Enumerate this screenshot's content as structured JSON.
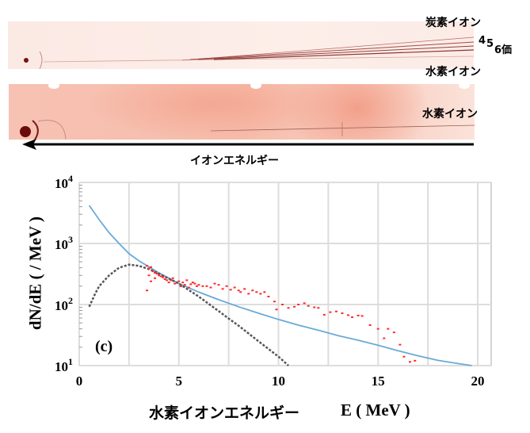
{
  "images": {
    "label_carbon": "炭素イオン",
    "charge_states": [
      "4",
      "5",
      "6価"
    ],
    "label_hydrogen_top": "水素イオン",
    "label_hydrogen_bottom": "水素イオン",
    "arrow_label": "イオンエネルギー"
  },
  "chart_data": {
    "type": "line",
    "panel_label": "(c)",
    "xlabel_jp": "水素イオンエネルギー",
    "xlabel": "E ( MeV )",
    "ylabel": "dN/dE ( / MeV )",
    "xlim": [
      0,
      20
    ],
    "ylim": [
      10,
      10000
    ],
    "yscale": "log",
    "grid": true,
    "x_ticks": [
      "0",
      "5",
      "10",
      "15",
      "20"
    ],
    "y_ticks": [
      {
        "base": "10",
        "exp": "1"
      },
      {
        "base": "10",
        "exp": "2"
      },
      {
        "base": "10",
        "exp": "3"
      },
      {
        "base": "10",
        "exp": "4"
      }
    ],
    "colors": {
      "fit": "#6aaad8",
      "model": "#555555",
      "measured": "#ff2a2a"
    },
    "series": [
      {
        "style": "solid",
        "color": "#6aaad8",
        "x": [
          0.5,
          1,
          1.5,
          2,
          2.5,
          3,
          4,
          5,
          6,
          7,
          8,
          9,
          10,
          11,
          12,
          13,
          14,
          15,
          16,
          17,
          18,
          19,
          19.7
        ],
        "y": [
          4200,
          2450,
          1500,
          1000,
          680,
          520,
          330,
          220,
          160,
          120,
          92,
          72,
          57,
          46,
          38,
          31,
          26,
          21.5,
          17.5,
          14.5,
          12.2,
          10.8,
          10
        ]
      },
      {
        "style": "dashed",
        "color": "#555555",
        "x": [
          0.5,
          0.8,
          1,
          1.5,
          2,
          2.5,
          3,
          3.5,
          4,
          5,
          6,
          7,
          7.5,
          8,
          9,
          10,
          10.5
        ],
        "y": [
          92,
          150,
          200,
          300,
          400,
          450,
          430,
          380,
          320,
          220,
          135,
          78,
          59,
          45,
          25,
          14,
          10
        ]
      },
      {
        "style": "points",
        "color": "#ff2a2a",
        "x": [
          3.4,
          3.5,
          3.6,
          3.7,
          3.8,
          3.5,
          3.9,
          4.0,
          4.1,
          4.2,
          4.3,
          4.4,
          3.6,
          3.8,
          4.5,
          4.6,
          4.7,
          4.8,
          5.0,
          5.1,
          5.2,
          5.3,
          5.4,
          5.5,
          5.6,
          5.7,
          5.8,
          5.9,
          6.0,
          6.2,
          6.4,
          6.6,
          6.8,
          7.0,
          7.2,
          7.4,
          7.6,
          7.8,
          8.0,
          8.1,
          8.3,
          8.5,
          8.7,
          8.9,
          9.1,
          9.3,
          9.5,
          9.8,
          9.9,
          10.2,
          10.5,
          10.8,
          11.0,
          11.3,
          11.5,
          11.8,
          12.0,
          12.3,
          12.6,
          12.9,
          13.2,
          13.5,
          13.7,
          14.0,
          14.2,
          14.6,
          15.0,
          15.3,
          15.5,
          15.8,
          16.1,
          16.3,
          16.6,
          16.85,
          3.4,
          4.2,
          5.1
        ],
        "y": [
          430,
          390,
          410,
          350,
          330,
          300,
          320,
          300,
          290,
          280,
          260,
          250,
          240,
          270,
          230,
          250,
          270,
          220,
          240,
          200,
          230,
          210,
          250,
          190,
          215,
          230,
          220,
          200,
          210,
          200,
          200,
          190,
          220,
          210,
          180,
          200,
          175,
          190,
          170,
          160,
          180,
          150,
          170,
          160,
          150,
          160,
          135,
          112,
          83,
          100,
          88,
          92,
          100,
          105,
          95,
          90,
          88,
          68,
          75,
          77,
          72,
          67,
          62,
          66,
          65,
          46,
          40,
          28,
          40,
          35,
          22,
          14,
          11.5,
          12,
          170,
          280,
          200
        ]
      }
    ]
  }
}
